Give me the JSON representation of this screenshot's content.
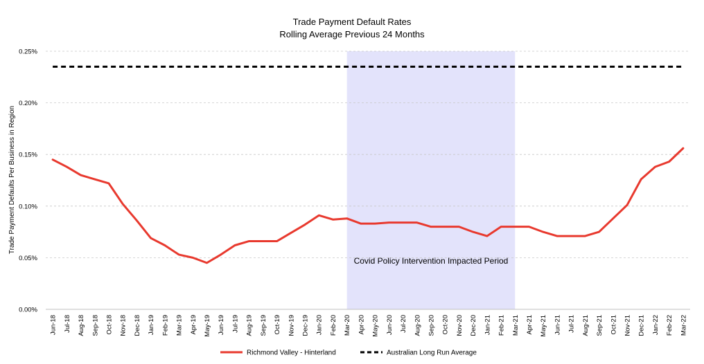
{
  "chart_data": {
    "type": "line",
    "title": "Trade Payment Default Rates",
    "subtitle": "Rolling Average Previous 24 Months",
    "ylabel": "Trade Payment Defaults Per Business in Region",
    "xlabel": "",
    "ylim": [
      0,
      0.25
    ],
    "yticks": [
      "0.00%",
      "0.05%",
      "0.10%",
      "0.15%",
      "0.20%",
      "0.25%"
    ],
    "ytick_values": [
      0,
      0.05,
      0.1,
      0.15,
      0.2,
      0.25
    ],
    "grid": true,
    "legend_position": "bottom-center",
    "categories": [
      "Jun-18",
      "Jul-18",
      "Aug-18",
      "Sep-18",
      "Oct-18",
      "Nov-18",
      "Dec-18",
      "Jan-19",
      "Feb-19",
      "Mar-19",
      "Apr-19",
      "May-19",
      "Jun-19",
      "Jul-19",
      "Aug-19",
      "Sep-19",
      "Oct-19",
      "Nov-19",
      "Dec-19",
      "Jan-20",
      "Feb-20",
      "Mar-20",
      "Apr-20",
      "May-20",
      "Jun-20",
      "Jul-20",
      "Aug-20",
      "Sep-20",
      "Oct-20",
      "Nov-20",
      "Dec-20",
      "Jan-21",
      "Feb-21",
      "Mar-21",
      "Apr-21",
      "May-21",
      "Jun-21",
      "Jul-21",
      "Aug-21",
      "Sep-21",
      "Oct-21",
      "Nov-21",
      "Dec-21",
      "Jan-22",
      "Feb-22",
      "Mar-22"
    ],
    "series": [
      {
        "name": "Richmond Valley - Hinterland",
        "color": "#e8392e",
        "style": "solid",
        "values": [
          0.145,
          0.138,
          0.13,
          0.126,
          0.122,
          0.102,
          0.086,
          0.069,
          0.062,
          0.053,
          0.05,
          0.045,
          0.053,
          0.062,
          0.066,
          0.066,
          0.066,
          0.074,
          0.082,
          0.091,
          0.087,
          0.088,
          0.083,
          0.083,
          0.084,
          0.084,
          0.084,
          0.08,
          0.08,
          0.08,
          0.075,
          0.071,
          0.08,
          0.08,
          0.08,
          0.075,
          0.071,
          0.071,
          0.071,
          0.075,
          0.088,
          0.101,
          0.126,
          0.138,
          0.143,
          0.156
        ]
      },
      {
        "name": "Australian Long Run Average",
        "color": "#000000",
        "style": "dashed",
        "values": [
          0.235,
          0.235,
          0.235,
          0.235,
          0.235,
          0.235,
          0.235,
          0.235,
          0.235,
          0.235,
          0.235,
          0.235,
          0.235,
          0.235,
          0.235,
          0.235,
          0.235,
          0.235,
          0.235,
          0.235,
          0.235,
          0.235,
          0.235,
          0.235,
          0.235,
          0.235,
          0.235,
          0.235,
          0.235,
          0.235,
          0.235,
          0.235,
          0.235,
          0.235,
          0.235,
          0.235,
          0.235,
          0.235,
          0.235,
          0.235,
          0.235,
          0.235,
          0.235,
          0.235,
          0.235,
          0.235
        ]
      }
    ],
    "shaded_period": {
      "start": "Mar-20",
      "end": "Mar-21",
      "label": "Covid Policy Intervention Impacted Period",
      "color": "#e3e3fb"
    }
  }
}
